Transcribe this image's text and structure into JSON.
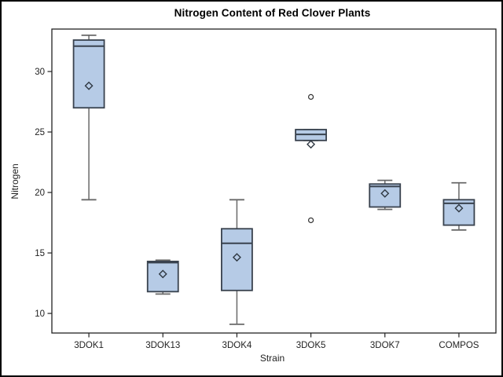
{
  "chart_data": {
    "type": "box",
    "title": "Nitrogen Content of Red Clover Plants",
    "xlabel": "Strain",
    "ylabel": "Nitrogen",
    "categories": [
      "3DOK1",
      "3DOK13",
      "3DOK4",
      "3DOK5",
      "3DOK7",
      "COMPOS"
    ],
    "yticks": [
      10,
      15,
      20,
      25,
      30
    ],
    "ylim": [
      8.38,
      33.51
    ],
    "grid": false,
    "legend_position": "none",
    "boxes": [
      {
        "category": "3DOK1",
        "whisker_low": 19.4,
        "q1": 27.0,
        "median": 32.1,
        "q3": 32.6,
        "whisker_high": 33.0,
        "mean": 28.82,
        "outliers": []
      },
      {
        "category": "3DOK13",
        "whisker_low": 11.6,
        "q1": 11.8,
        "median": 14.2,
        "q3": 14.3,
        "whisker_high": 14.4,
        "mean": 13.26,
        "outliers": []
      },
      {
        "category": "3DOK4",
        "whisker_low": 9.1,
        "q1": 11.9,
        "median": 15.8,
        "q3": 17.0,
        "whisker_high": 19.4,
        "mean": 14.64,
        "outliers": []
      },
      {
        "category": "3DOK5",
        "whisker_low": 24.3,
        "q1": 24.3,
        "median": 24.8,
        "q3": 25.2,
        "whisker_high": 25.2,
        "mean": 23.98,
        "outliers": [
          17.7,
          27.9
        ]
      },
      {
        "category": "3DOK7",
        "whisker_low": 18.6,
        "q1": 18.8,
        "median": 20.5,
        "q3": 20.7,
        "whisker_high": 21.0,
        "mean": 19.92,
        "outliers": []
      },
      {
        "category": "COMPOS",
        "whisker_low": 16.9,
        "q1": 17.3,
        "median": 19.1,
        "q3": 19.4,
        "whisker_high": 20.8,
        "mean": 18.7,
        "outliers": []
      }
    ]
  },
  "colors": {
    "box_fill": "#B6CBE6",
    "box_stroke": "#39424E",
    "median": "#39424E",
    "whisker": "#696969",
    "mean_marker": "#2F3842",
    "outlier_stroke": "#333333",
    "frame": "#222222",
    "text": "#222222",
    "title_text": "#000000",
    "background": "#FFFFFF",
    "figure_border": "#000000"
  }
}
